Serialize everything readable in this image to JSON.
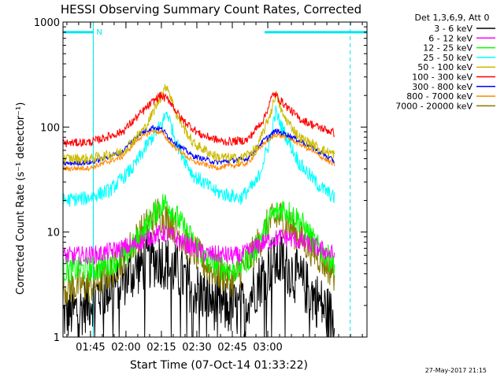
{
  "chart_data": {
    "type": "line",
    "title": "HESSI Observing Summary Count Rates, Corrected",
    "xlabel": "Start Time (07-Oct-14 01:33:22)",
    "ylabel": "Corrected Count Rate (s⁻¹ detector⁻¹)",
    "yscale": "log",
    "ylim": [
      1,
      1000
    ],
    "xlim_minutes_from_start": [
      0,
      128.6
    ],
    "x_tick_labels": [
      "01:45",
      "02:00",
      "02:15",
      "02:30",
      "02:45",
      "03:00"
    ],
    "x_tick_minutes": [
      11.63,
      26.63,
      41.63,
      56.63,
      71.63,
      86.63
    ],
    "y_tick_labels": [
      "1",
      "10",
      "100",
      "1000"
    ],
    "y_ticks": [
      1,
      10,
      100,
      1000
    ],
    "legend_header": "Det 1,3,6,9, Att 0",
    "legend_position": "right",
    "footer_date": "27-May-2017 21:15",
    "flag_label": "N",
    "series": [
      {
        "name": "3 - 6 keV",
        "color": "#000000",
        "x": [
          0,
          8,
          14,
          25,
          35,
          41,
          46,
          55,
          66,
          75,
          82,
          88,
          93,
          100,
          108,
          115
        ],
        "y": [
          1.6,
          1.9,
          2.5,
          3.5,
          5.2,
          5.6,
          4.6,
          3,
          2,
          1.8,
          3.2,
          5,
          5.2,
          3.5,
          2.2,
          1.4
        ]
      },
      {
        "name": "6 - 12 keV",
        "color": "#ff00ff",
        "x": [
          0,
          15,
          30,
          38,
          43,
          48,
          60,
          75,
          85,
          93,
          100,
          108,
          115
        ],
        "y": [
          5.9,
          6.1,
          7.5,
          9.2,
          9.8,
          8.6,
          6.2,
          5.9,
          8,
          9,
          8.2,
          7,
          6
        ]
      },
      {
        "name": "12 - 25 keV",
        "color": "#00ff00",
        "x": [
          0,
          15,
          27,
          35,
          41,
          44,
          50,
          60,
          72,
          80,
          88,
          93,
          100,
          108,
          115
        ],
        "y": [
          4.3,
          4.5,
          6,
          11,
          18,
          19,
          12,
          5.5,
          4.2,
          6,
          14,
          17,
          13,
          7,
          5
        ]
      },
      {
        "name": "25 - 50 keV",
        "color": "#00ffff",
        "x": [
          0,
          10,
          20,
          30,
          36,
          42,
          44,
          48,
          55,
          65,
          75,
          82,
          88,
          90,
          93,
          100,
          108,
          115
        ],
        "y": [
          20,
          21,
          25,
          42,
          70,
          110,
          140,
          70,
          35,
          24,
          21,
          30,
          80,
          140,
          95,
          45,
          28,
          21
        ]
      },
      {
        "name": "50 - 100 keV",
        "color": "#ccbb00",
        "x": [
          0,
          12,
          25,
          35,
          40,
          44,
          48,
          55,
          65,
          75,
          82,
          88,
          90,
          93,
          100,
          110,
          115
        ],
        "y": [
          50,
          50,
          58,
          100,
          170,
          250,
          130,
          70,
          52,
          50,
          62,
          140,
          210,
          130,
          80,
          60,
          55
        ]
      },
      {
        "name": "100 - 300 keV",
        "color": "#ff0000",
        "x": [
          0,
          12,
          25,
          35,
          41,
          45,
          50,
          58,
          68,
          78,
          85,
          89,
          93,
          100,
          108,
          115
        ],
        "y": [
          70,
          72,
          90,
          150,
          200,
          180,
          120,
          85,
          72,
          75,
          120,
          210,
          170,
          120,
          100,
          88
        ]
      },
      {
        "name": "300 - 800 keV",
        "color": "#0000ff",
        "x": [
          0,
          12,
          25,
          32,
          38,
          42,
          46,
          55,
          65,
          78,
          85,
          90,
          95,
          105,
          115
        ],
        "y": [
          45,
          46,
          58,
          85,
          100,
          95,
          75,
          53,
          46,
          50,
          75,
          92,
          85,
          65,
          47
        ]
      },
      {
        "name": "800 - 7000 keV",
        "color": "#ff8800",
        "x": [
          0,
          12,
          25,
          32,
          38,
          42,
          46,
          55,
          65,
          78,
          85,
          90,
          95,
          105,
          115
        ],
        "y": [
          40,
          41,
          52,
          78,
          92,
          88,
          68,
          47,
          41,
          45,
          70,
          85,
          80,
          60,
          43
        ]
      },
      {
        "name": "7000 - 20000 keV",
        "color": "#887700",
        "x": [
          0,
          12,
          22,
          30,
          36,
          40,
          45,
          52,
          62,
          72,
          80,
          87,
          92,
          100,
          108,
          115
        ],
        "y": [
          3,
          3.1,
          4.5,
          8,
          12,
          15,
          13,
          8,
          4.5,
          3.5,
          6,
          12,
          14,
          9,
          6,
          4
        ]
      }
    ],
    "cyan_boxes": [
      {
        "x": [
          0,
          12.8
        ],
        "y": 800
      },
      {
        "x": [
          85.3,
          128.6
        ],
        "y": 800
      }
    ],
    "dashed_markers_minutes": [
      12.8,
      121.5
    ]
  }
}
